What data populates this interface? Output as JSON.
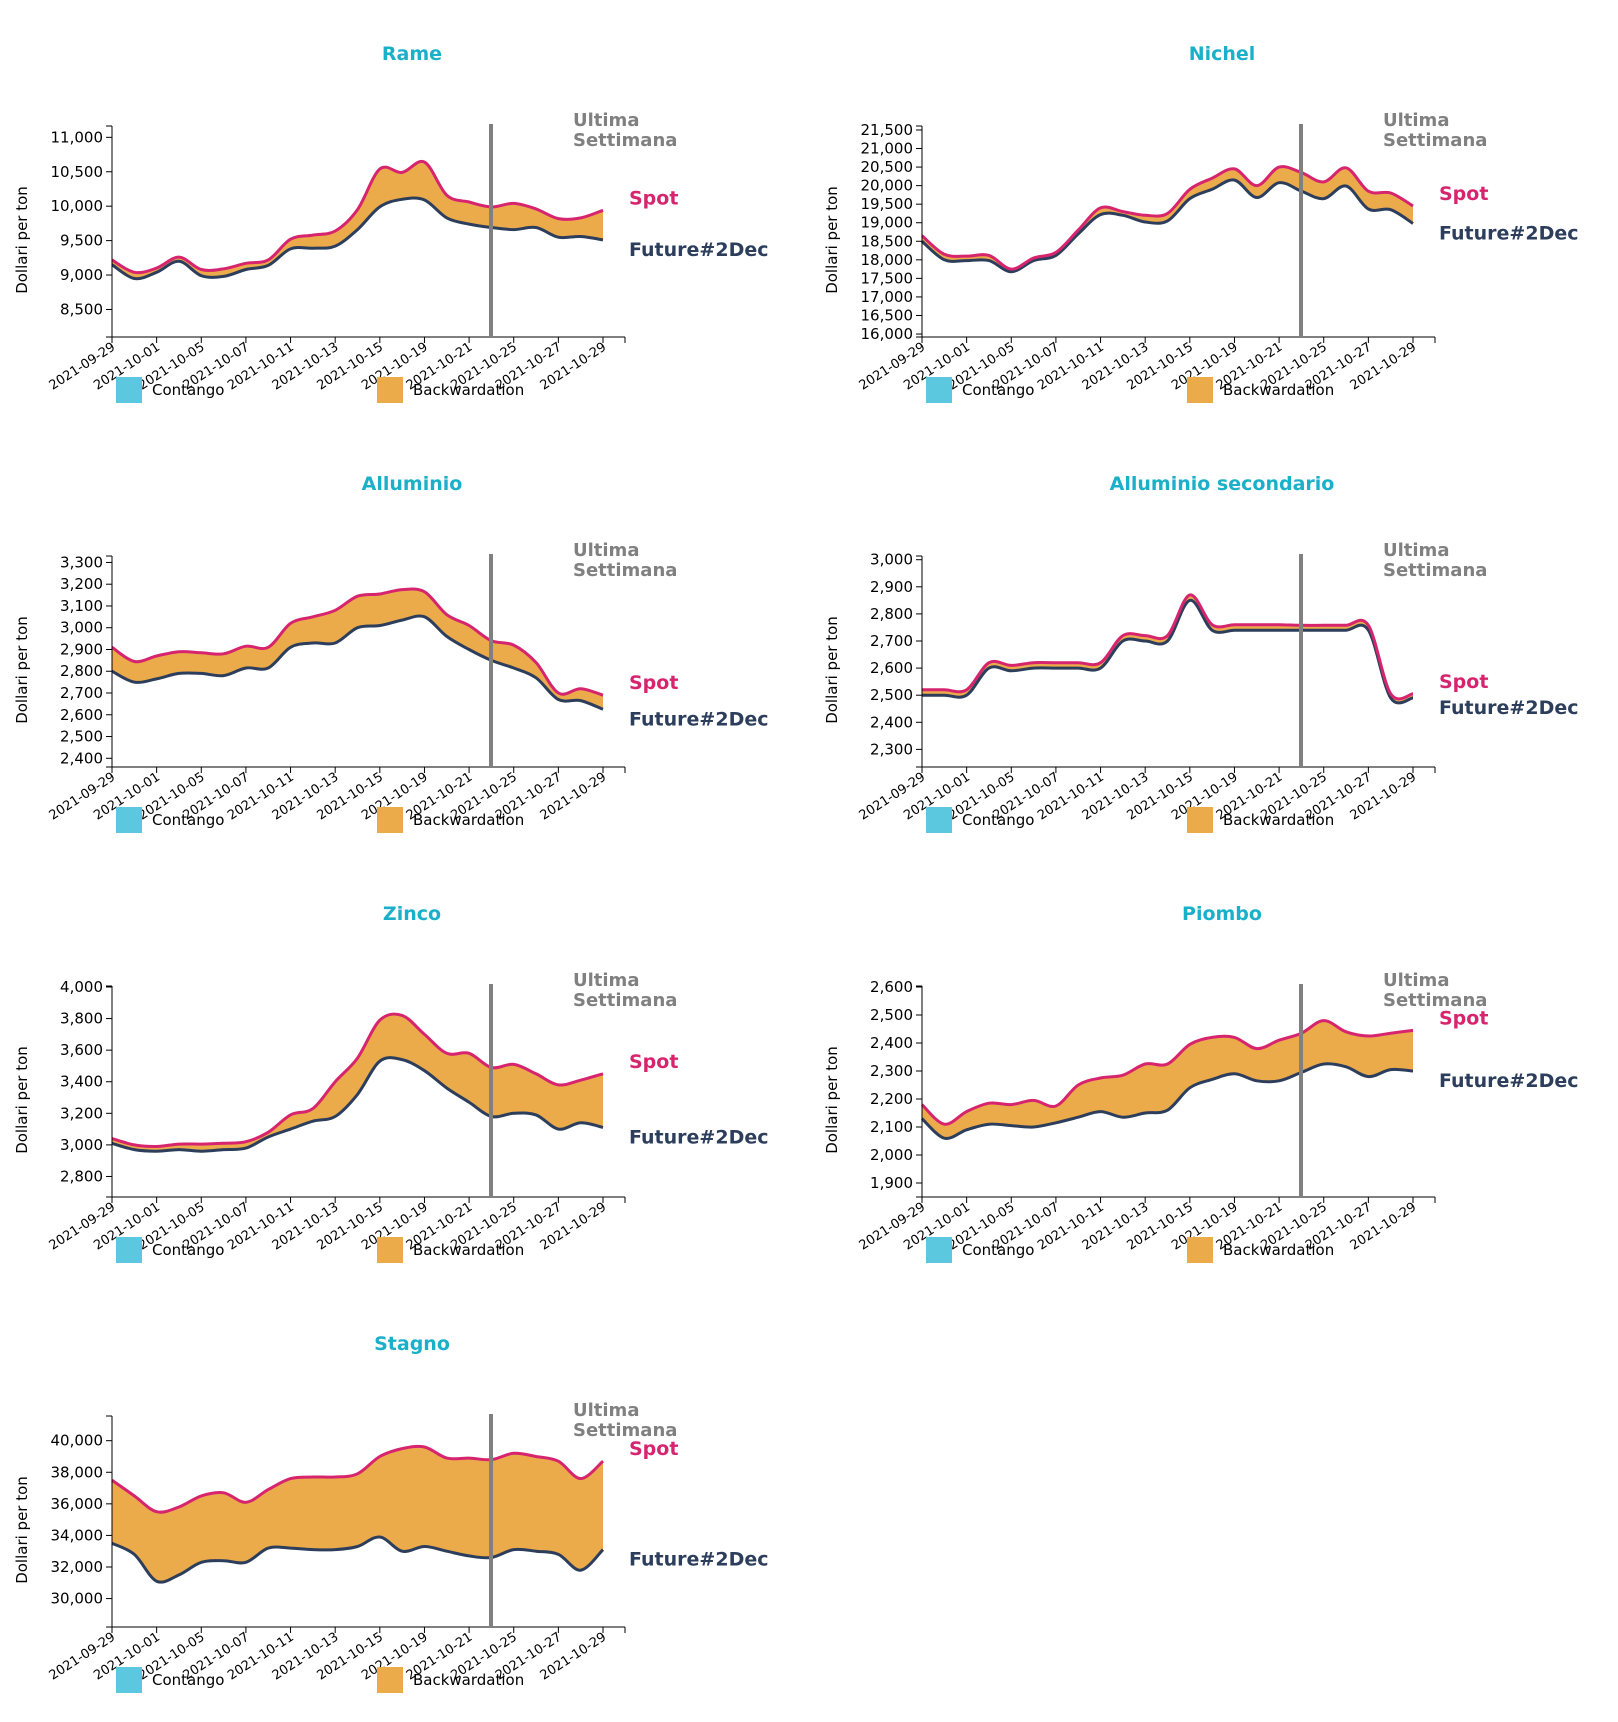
{
  "colors": {
    "title": "#1bb0c9",
    "spot": "#d6246e",
    "future": "#2c3e5c",
    "backwardation": "#ecab4b",
    "contango": "#5bc8df",
    "week_line": "#808080",
    "week_text": "#808080"
  },
  "common": {
    "ylabel": "Dollari per ton",
    "week_label_1": "Ultima",
    "week_label_2": "Settimana",
    "spot_label": "Spot",
    "future_label": "Future#2Dec",
    "legend_contango": "Contango",
    "legend_backwardation": "Backwardation",
    "week_marker_date": "2021-10-22",
    "x_ticks": [
      "2021-09-29",
      "2021-10-01",
      "2021-10-05",
      "2021-10-07",
      "2021-10-11",
      "2021-10-13",
      "2021-10-15",
      "2021-10-19",
      "2021-10-21",
      "2021-10-25",
      "2021-10-27",
      "2021-10-29"
    ]
  },
  "chart_data": [
    {
      "type": "area",
      "title": "Rame",
      "ylabel": "Dollari per ton",
      "ylim": [
        8100,
        11150
      ],
      "y_ticks": [
        8500,
        9000,
        9500,
        10000,
        10500,
        11000
      ],
      "spot": [
        9220,
        9040,
        9100,
        9260,
        9080,
        9090,
        9170,
        9220,
        9520,
        9580,
        9640,
        9950,
        10540,
        10490,
        10640,
        10160,
        10060,
        9990,
        10040,
        9960,
        9820,
        9830,
        9940
      ],
      "future": [
        9150,
        8950,
        9040,
        9200,
        8990,
        8980,
        9080,
        9140,
        9380,
        9390,
        9420,
        9660,
        9990,
        10100,
        10090,
        9830,
        9740,
        9690,
        9660,
        9690,
        9550,
        9560,
        9510
      ]
    },
    {
      "type": "area",
      "title": "Nichel",
      "ylabel": "Dollari per ton",
      "ylim": [
        15920,
        21580
      ],
      "y_ticks": [
        16000,
        16500,
        17000,
        17500,
        18000,
        18500,
        19000,
        19500,
        20000,
        20500,
        21000,
        21500
      ],
      "spot": [
        18650,
        18150,
        18100,
        18120,
        17750,
        18050,
        18200,
        18800,
        19400,
        19300,
        19200,
        19250,
        19900,
        20200,
        20450,
        20000,
        20500,
        20350,
        20100,
        20480,
        19850,
        19800,
        19450
      ],
      "future": [
        18500,
        18000,
        17980,
        17980,
        17680,
        17980,
        18120,
        18700,
        19220,
        19200,
        19020,
        19050,
        19650,
        19900,
        20150,
        19680,
        20080,
        19850,
        19650,
        19990,
        19370,
        19350,
        18980
      ]
    },
    {
      "type": "area",
      "title": "Alluminio",
      "ylabel": "Dollari per ton",
      "ylim": [
        2360,
        3325
      ],
      "y_ticks": [
        2400,
        2500,
        2600,
        2700,
        2800,
        2900,
        3000,
        3100,
        3200,
        3300
      ],
      "spot": [
        2910,
        2845,
        2870,
        2890,
        2885,
        2880,
        2915,
        2910,
        3020,
        3050,
        3080,
        3145,
        3155,
        3175,
        3165,
        3060,
        3010,
        2940,
        2920,
        2840,
        2700,
        2720,
        2690
      ],
      "future": [
        2800,
        2750,
        2765,
        2790,
        2790,
        2780,
        2815,
        2815,
        2910,
        2930,
        2930,
        3000,
        3010,
        3035,
        3050,
        2960,
        2900,
        2850,
        2815,
        2770,
        2670,
        2665,
        2625
      ]
    },
    {
      "type": "area",
      "title": "Alluminio secondario",
      "ylabel": "Dollari per ton",
      "ylim": [
        2235,
        3010
      ],
      "y_ticks": [
        2300,
        2400,
        2500,
        2600,
        2700,
        2800,
        2900,
        3000
      ],
      "spot": [
        2520,
        2520,
        2520,
        2620,
        2610,
        2620,
        2620,
        2620,
        2620,
        2720,
        2720,
        2720,
        2870,
        2760,
        2760,
        2760,
        2760,
        2758,
        2758,
        2758,
        2758,
        2505,
        2505
      ],
      "future": [
        2500,
        2500,
        2500,
        2600,
        2590,
        2600,
        2600,
        2600,
        2600,
        2700,
        2700,
        2700,
        2850,
        2740,
        2740,
        2740,
        2740,
        2740,
        2740,
        2740,
        2740,
        2490,
        2490
      ]
    },
    {
      "type": "area",
      "title": "Zinco",
      "ylabel": "Dollari per ton",
      "ylim": [
        2670,
        4000
      ],
      "y_ticks": [
        2800,
        3000,
        3200,
        3400,
        3600,
        3800,
        4000
      ],
      "spot": [
        3040,
        3000,
        2990,
        3005,
        3005,
        3010,
        3020,
        3080,
        3190,
        3230,
        3400,
        3550,
        3790,
        3820,
        3700,
        3580,
        3580,
        3490,
        3510,
        3450,
        3380,
        3410,
        3450
      ],
      "future": [
        3010,
        2970,
        2960,
        2970,
        2960,
        2970,
        2980,
        3050,
        3100,
        3150,
        3180,
        3320,
        3530,
        3540,
        3470,
        3360,
        3270,
        3180,
        3200,
        3190,
        3100,
        3140,
        3110
      ]
    },
    {
      "type": "area",
      "title": "Piombo",
      "ylabel": "Dollari per ton",
      "ylim": [
        1850,
        2600
      ],
      "y_ticks": [
        1900,
        2000,
        2100,
        2200,
        2300,
        2400,
        2500,
        2600
      ],
      "spot": [
        2180,
        2110,
        2155,
        2185,
        2180,
        2195,
        2175,
        2250,
        2275,
        2285,
        2325,
        2325,
        2395,
        2420,
        2420,
        2380,
        2410,
        2435,
        2480,
        2440,
        2425,
        2435,
        2445
      ],
      "future": [
        2130,
        2060,
        2090,
        2110,
        2105,
        2100,
        2115,
        2135,
        2155,
        2135,
        2150,
        2160,
        2240,
        2270,
        2290,
        2265,
        2265,
        2295,
        2325,
        2315,
        2280,
        2305,
        2300
      ]
    },
    {
      "type": "area",
      "title": "Stagno",
      "ylabel": "Dollari per ton",
      "ylim": [
        28200,
        41500
      ],
      "y_ticks": [
        30000,
        32000,
        34000,
        36000,
        38000,
        40000
      ],
      "spot": [
        37500,
        36500,
        35500,
        35800,
        36500,
        36700,
        36100,
        36900,
        37600,
        37700,
        37700,
        37900,
        39000,
        39500,
        39600,
        38900,
        38900,
        38800,
        39200,
        39000,
        38700,
        37600,
        38700
      ],
      "future": [
        33500,
        32800,
        31100,
        31500,
        32300,
        32400,
        32300,
        33200,
        33200,
        33100,
        33100,
        33300,
        33900,
        33000,
        33300,
        33000,
        32700,
        32600,
        33100,
        33000,
        32800,
        31800,
        33100
      ]
    }
  ]
}
